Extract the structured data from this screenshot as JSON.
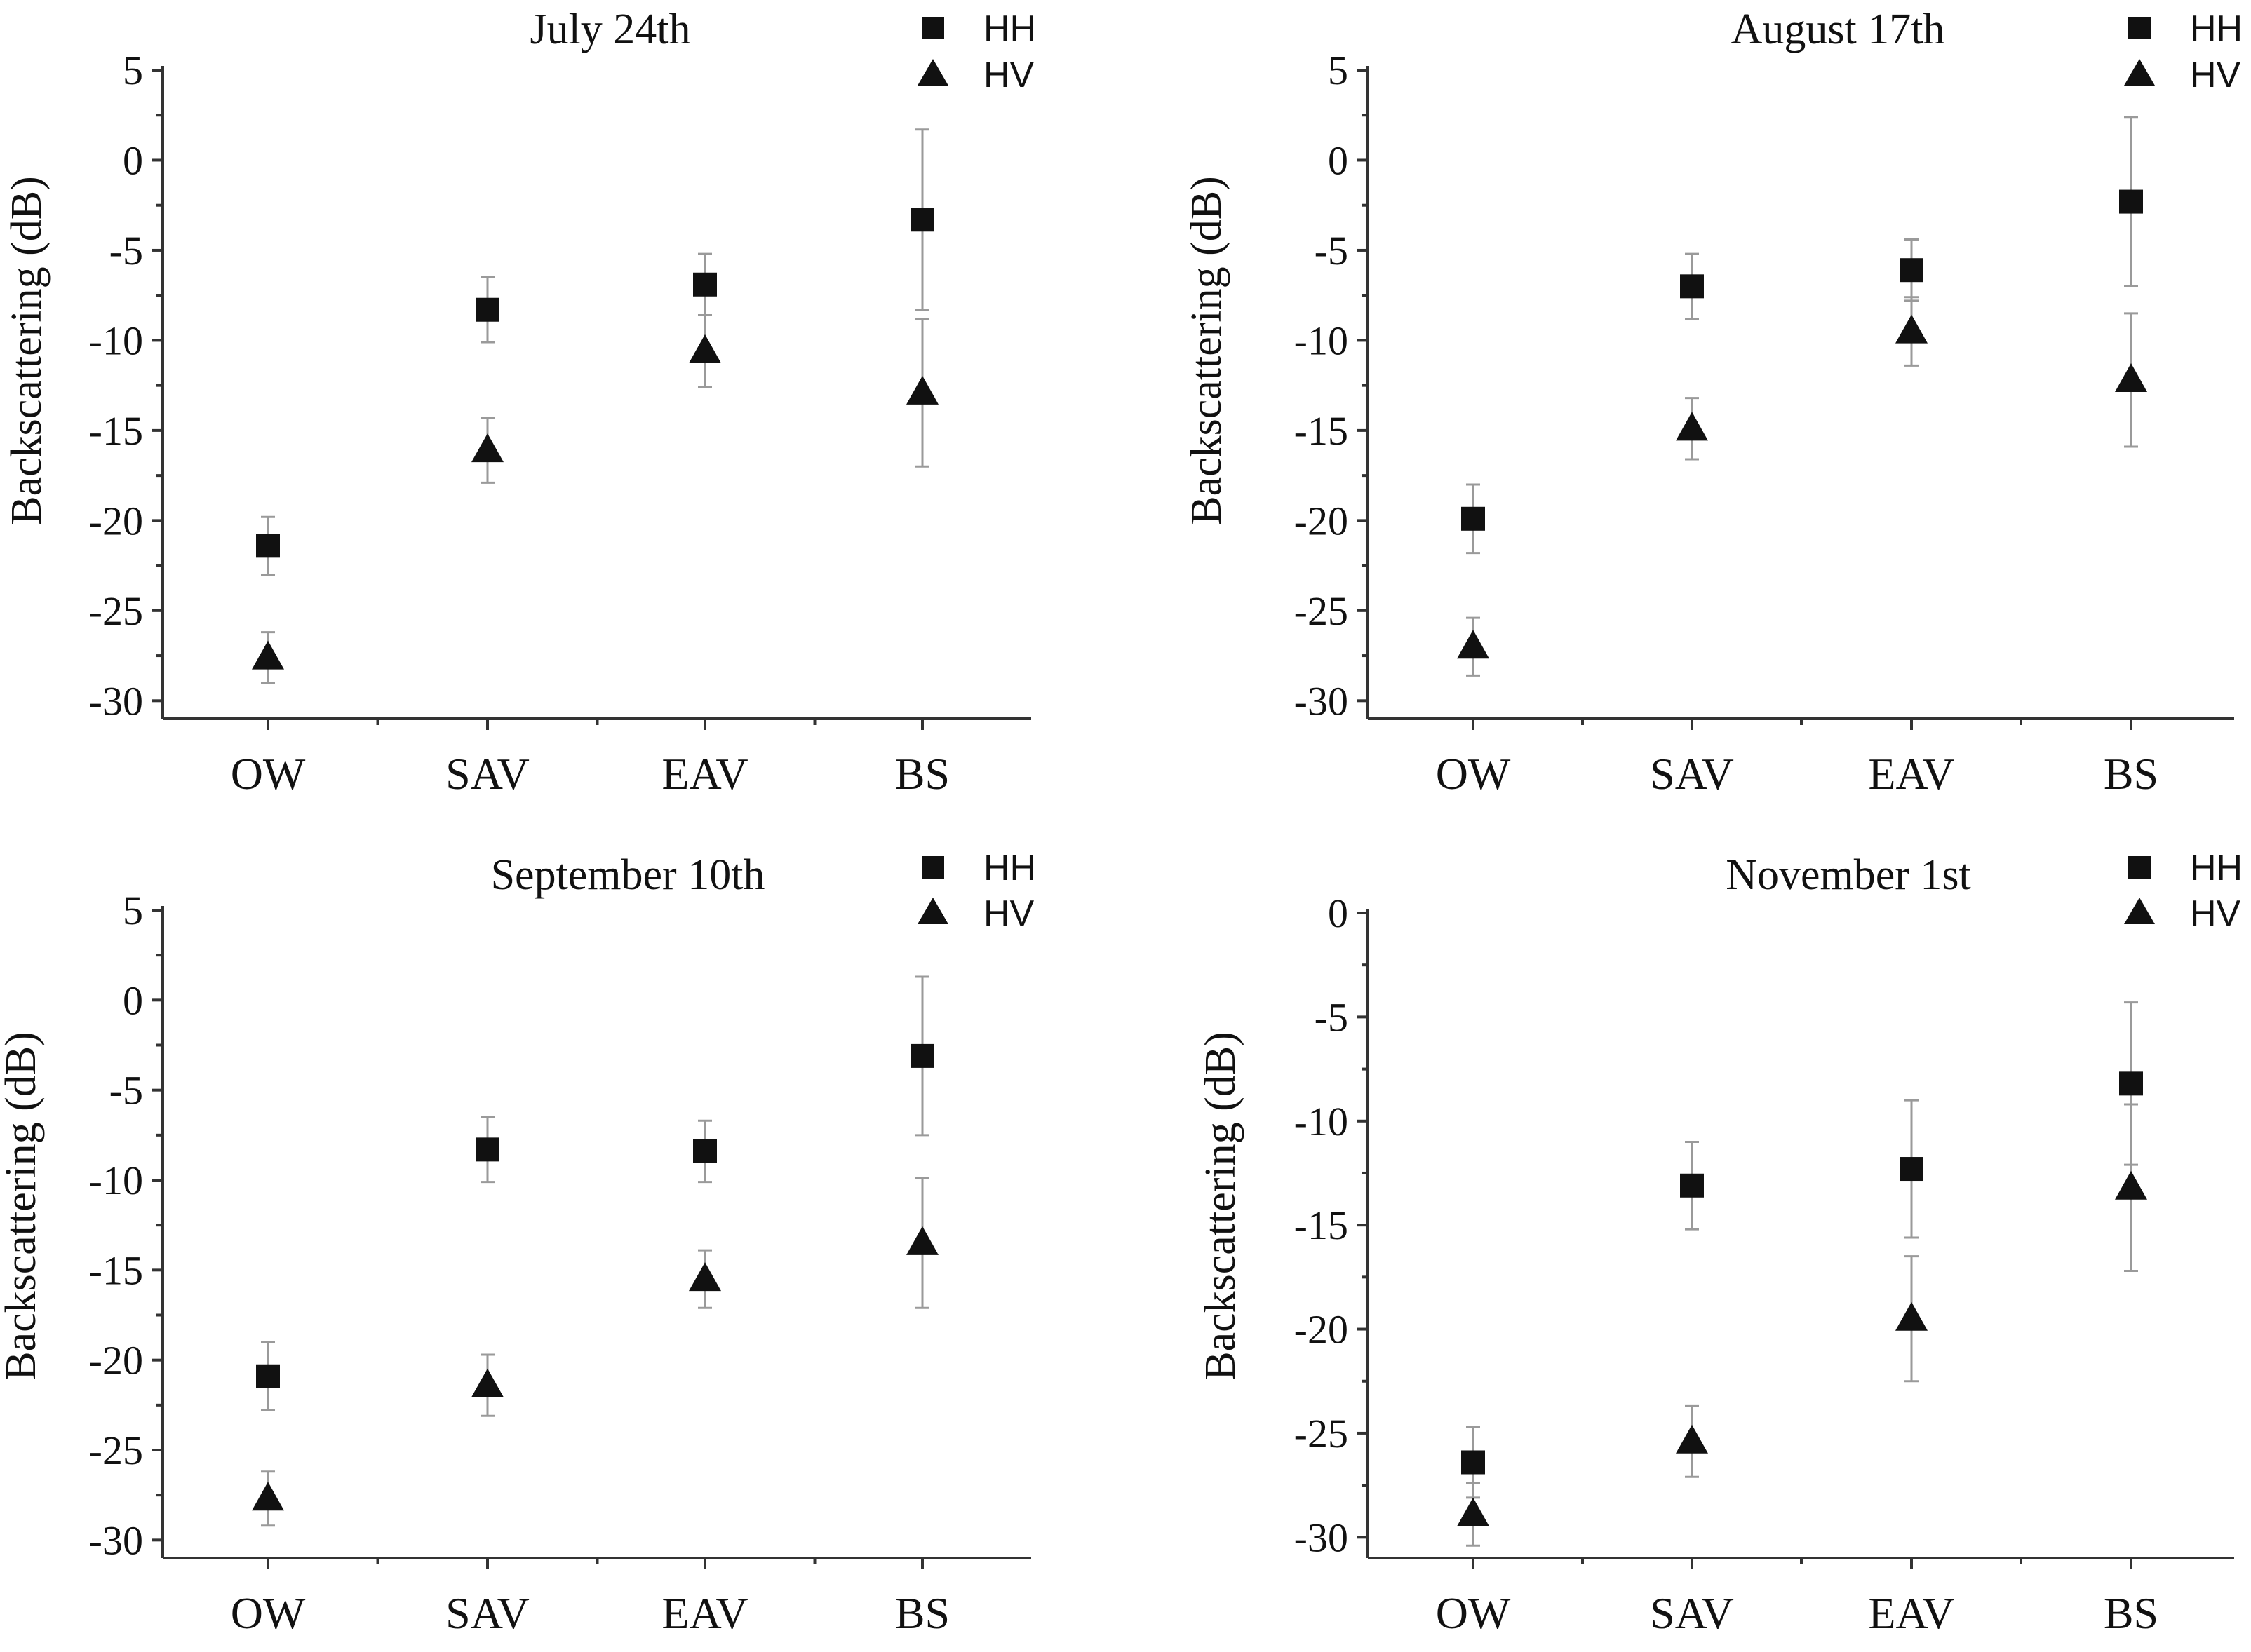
{
  "chart_data": [
    {
      "type": "scatter",
      "title": "July 24th",
      "ylabel": "Backscattering (dB)",
      "xlabel": "",
      "categories": [
        "OW",
        "SAV",
        "EAV",
        "BS"
      ],
      "ylim": [
        -31,
        5
      ],
      "yticks": [
        5,
        0,
        -5,
        -10,
        -15,
        -20,
        -25,
        -30
      ],
      "legend": [
        "HH",
        "HV"
      ],
      "legend_position": "top-right",
      "series": [
        {
          "name": "HH",
          "marker": "square",
          "values": [
            -21.4,
            -8.3,
            -6.9,
            -3.3
          ],
          "errors": [
            1.6,
            1.8,
            1.7,
            5.0
          ]
        },
        {
          "name": "HV",
          "marker": "triangle",
          "values": [
            -27.6,
            -16.1,
            -10.6,
            -12.9
          ],
          "errors": [
            1.4,
            1.8,
            2.0,
            4.1
          ]
        }
      ]
    },
    {
      "type": "scatter",
      "title": "August 17th",
      "ylabel": "Backscattering (dB)",
      "xlabel": "",
      "categories": [
        "OW",
        "SAV",
        "EAV",
        "BS"
      ],
      "ylim": [
        -31,
        5
      ],
      "yticks": [
        5,
        0,
        -5,
        -10,
        -15,
        -20,
        -25,
        -30
      ],
      "legend": [
        "HH",
        "HV"
      ],
      "legend_position": "top-right",
      "series": [
        {
          "name": "HH",
          "marker": "square",
          "values": [
            -19.9,
            -7.0,
            -6.1,
            -2.3
          ],
          "errors": [
            1.9,
            1.8,
            1.7,
            4.7
          ]
        },
        {
          "name": "HV",
          "marker": "triangle",
          "values": [
            -27.0,
            -14.9,
            -9.5,
            -12.2
          ],
          "errors": [
            1.6,
            1.7,
            1.9,
            3.7
          ]
        }
      ]
    },
    {
      "type": "scatter",
      "title": "September 10th",
      "ylabel": "Backscattering (dB)",
      "xlabel": "",
      "categories": [
        "OW",
        "SAV",
        "EAV",
        "BS"
      ],
      "ylim": [
        -31,
        5
      ],
      "yticks": [
        5,
        0,
        -5,
        -10,
        -15,
        -20,
        -25,
        -30
      ],
      "legend": [
        "HH",
        "HV"
      ],
      "legend_position": "top-right",
      "series": [
        {
          "name": "HH",
          "marker": "square",
          "values": [
            -20.9,
            -8.3,
            -8.4,
            -3.1
          ],
          "errors": [
            1.9,
            1.8,
            1.7,
            4.4
          ]
        },
        {
          "name": "HV",
          "marker": "triangle",
          "values": [
            -27.7,
            -21.4,
            -15.5,
            -13.5
          ],
          "errors": [
            1.5,
            1.7,
            1.6,
            3.6
          ]
        }
      ]
    },
    {
      "type": "scatter",
      "title": "November 1st",
      "ylabel": "Backscattering (dB)",
      "xlabel": "",
      "categories": [
        "OW",
        "SAV",
        "EAV",
        "BS"
      ],
      "ylim": [
        -31,
        0
      ],
      "yticks": [
        0,
        -5,
        -10,
        -15,
        -20,
        -25,
        -30
      ],
      "legend": [
        "HH",
        "HV"
      ],
      "legend_position": "top-right",
      "series": [
        {
          "name": "HH",
          "marker": "square",
          "values": [
            -26.4,
            -13.1,
            -12.3,
            -8.2
          ],
          "errors": [
            1.7,
            2.1,
            3.3,
            3.9
          ]
        },
        {
          "name": "HV",
          "marker": "triangle",
          "values": [
            -28.9,
            -25.4,
            -19.5,
            -13.2
          ],
          "errors": [
            1.5,
            1.7,
            3.0,
            4.0
          ]
        }
      ]
    }
  ]
}
